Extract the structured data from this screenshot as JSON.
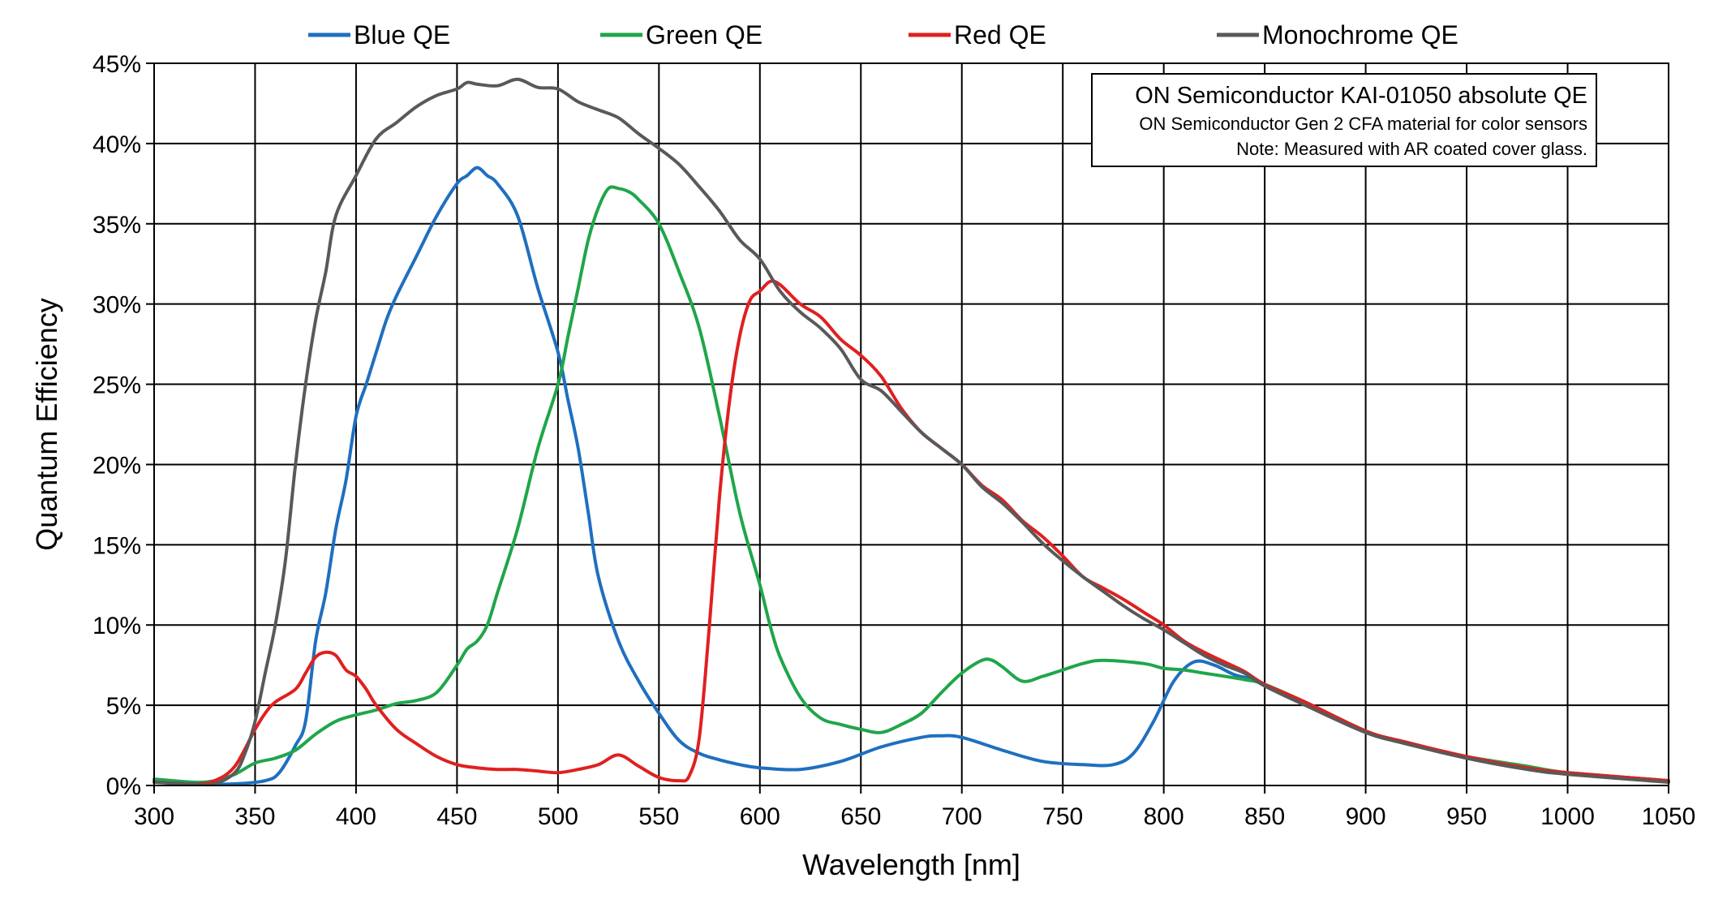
{
  "chart_data": {
    "type": "line",
    "title": "",
    "xlabel": "Wavelength [nm]",
    "ylabel": "Quantum Efficiency",
    "xlim": [
      300,
      1050
    ],
    "ylim": [
      0,
      45
    ],
    "x_ticks": [
      300,
      350,
      400,
      450,
      500,
      550,
      600,
      650,
      700,
      750,
      800,
      850,
      900,
      950,
      1000,
      1050
    ],
    "x_tick_labels": [
      "300",
      "350",
      "400",
      "450",
      "500",
      "550",
      "600",
      "650",
      "700",
      "750",
      "800",
      "850",
      "900",
      "950",
      "1000",
      "1050"
    ],
    "y_ticks": [
      0,
      5,
      10,
      15,
      20,
      25,
      30,
      35,
      40,
      45
    ],
    "y_tick_labels": [
      "0%",
      "5%",
      "10%",
      "15%",
      "20%",
      "25%",
      "30%",
      "35%",
      "40%",
      "45%"
    ],
    "grid": true,
    "legend_position": "top",
    "annotation": {
      "title": "ON Semiconductor KAI-01050 absolute QE",
      "line1": "ON Semiconductor Gen 2 CFA material for color sensors",
      "line2": "Note: Measured with AR coated cover glass."
    },
    "series": [
      {
        "name": "Blue QE",
        "color": "#1f6fbf",
        "points": [
          [
            300,
            0.3
          ],
          [
            320,
            0.1
          ],
          [
            340,
            0.1
          ],
          [
            355,
            0.3
          ],
          [
            362,
            0.8
          ],
          [
            370,
            2.5
          ],
          [
            375,
            4
          ],
          [
            380,
            9
          ],
          [
            385,
            12
          ],
          [
            390,
            16
          ],
          [
            395,
            19
          ],
          [
            400,
            23
          ],
          [
            405,
            25
          ],
          [
            410,
            27
          ],
          [
            415,
            29
          ],
          [
            420,
            30.5
          ],
          [
            430,
            33
          ],
          [
            440,
            35.5
          ],
          [
            450,
            37.5
          ],
          [
            455,
            38
          ],
          [
            460,
            38.5
          ],
          [
            465,
            38
          ],
          [
            470,
            37.5
          ],
          [
            480,
            35.5
          ],
          [
            490,
            31
          ],
          [
            500,
            27
          ],
          [
            505,
            24
          ],
          [
            510,
            21
          ],
          [
            515,
            17
          ],
          [
            520,
            13
          ],
          [
            530,
            9
          ],
          [
            540,
            6.5
          ],
          [
            550,
            4.5
          ],
          [
            560,
            2.8
          ],
          [
            570,
            2
          ],
          [
            580,
            1.6
          ],
          [
            590,
            1.3
          ],
          [
            600,
            1.1
          ],
          [
            620,
            1.0
          ],
          [
            640,
            1.5
          ],
          [
            660,
            2.4
          ],
          [
            680,
            3.0
          ],
          [
            690,
            3.1
          ],
          [
            700,
            3.0
          ],
          [
            720,
            2.2
          ],
          [
            740,
            1.5
          ],
          [
            760,
            1.3
          ],
          [
            775,
            1.3
          ],
          [
            785,
            2.0
          ],
          [
            795,
            4
          ],
          [
            805,
            6.5
          ],
          [
            815,
            7.7
          ],
          [
            825,
            7.5
          ],
          [
            835,
            6.9
          ],
          [
            845,
            6.6
          ],
          [
            850,
            6.3
          ],
          [
            870,
            5.2
          ],
          [
            900,
            3.4
          ],
          [
            920,
            2.6
          ],
          [
            950,
            1.8
          ],
          [
            980,
            1.1
          ],
          [
            1000,
            0.8
          ],
          [
            1050,
            0.3
          ]
        ]
      },
      {
        "name": "Green QE",
        "color": "#1fa64a",
        "points": [
          [
            300,
            0.4
          ],
          [
            320,
            0.2
          ],
          [
            330,
            0.3
          ],
          [
            340,
            0.7
          ],
          [
            350,
            1.4
          ],
          [
            360,
            1.7
          ],
          [
            370,
            2.2
          ],
          [
            380,
            3.2
          ],
          [
            390,
            4.0
          ],
          [
            400,
            4.4
          ],
          [
            410,
            4.7
          ],
          [
            420,
            5.1
          ],
          [
            430,
            5.3
          ],
          [
            440,
            5.8
          ],
          [
            450,
            7.5
          ],
          [
            455,
            8.5
          ],
          [
            460,
            9.0
          ],
          [
            465,
            10
          ],
          [
            470,
            12
          ],
          [
            480,
            16
          ],
          [
            490,
            21
          ],
          [
            500,
            25
          ],
          [
            505,
            28
          ],
          [
            510,
            31
          ],
          [
            515,
            34
          ],
          [
            520,
            36
          ],
          [
            525,
            37.2
          ],
          [
            530,
            37.2
          ],
          [
            535,
            37
          ],
          [
            540,
            36.5
          ],
          [
            550,
            35
          ],
          [
            560,
            32
          ],
          [
            570,
            28.5
          ],
          [
            580,
            23
          ],
          [
            590,
            17
          ],
          [
            600,
            12.5
          ],
          [
            605,
            10
          ],
          [
            610,
            8
          ],
          [
            620,
            5.5
          ],
          [
            630,
            4.2
          ],
          [
            640,
            3.8
          ],
          [
            650,
            3.5
          ],
          [
            660,
            3.3
          ],
          [
            670,
            3.8
          ],
          [
            680,
            4.5
          ],
          [
            690,
            5.8
          ],
          [
            700,
            7
          ],
          [
            710,
            7.8
          ],
          [
            715,
            7.8
          ],
          [
            720,
            7.4
          ],
          [
            730,
            6.5
          ],
          [
            740,
            6.8
          ],
          [
            750,
            7.2
          ],
          [
            760,
            7.6
          ],
          [
            770,
            7.8
          ],
          [
            790,
            7.6
          ],
          [
            800,
            7.3
          ],
          [
            810,
            7.2
          ],
          [
            820,
            7.0
          ],
          [
            840,
            6.6
          ],
          [
            850,
            6.3
          ],
          [
            870,
            5.2
          ],
          [
            900,
            3.4
          ],
          [
            920,
            2.6
          ],
          [
            950,
            1.8
          ],
          [
            980,
            1.2
          ],
          [
            1000,
            0.8
          ],
          [
            1050,
            0.3
          ]
        ]
      },
      {
        "name": "Red QE",
        "color": "#e02020",
        "points": [
          [
            300,
            0.2
          ],
          [
            320,
            0.1
          ],
          [
            330,
            0.3
          ],
          [
            340,
            1.2
          ],
          [
            350,
            3.5
          ],
          [
            355,
            4.5
          ],
          [
            360,
            5.2
          ],
          [
            370,
            6.0
          ],
          [
            375,
            7.0
          ],
          [
            380,
            8.0
          ],
          [
            385,
            8.3
          ],
          [
            390,
            8.1
          ],
          [
            395,
            7.2
          ],
          [
            400,
            6.8
          ],
          [
            405,
            6.0
          ],
          [
            410,
            5.0
          ],
          [
            420,
            3.5
          ],
          [
            430,
            2.6
          ],
          [
            440,
            1.8
          ],
          [
            450,
            1.3
          ],
          [
            460,
            1.1
          ],
          [
            470,
            1.0
          ],
          [
            480,
            1.0
          ],
          [
            490,
            0.9
          ],
          [
            500,
            0.8
          ],
          [
            510,
            1.0
          ],
          [
            520,
            1.3
          ],
          [
            530,
            1.9
          ],
          [
            540,
            1.2
          ],
          [
            550,
            0.5
          ],
          [
            560,
            0.3
          ],
          [
            565,
            0.6
          ],
          [
            570,
            3
          ],
          [
            575,
            10
          ],
          [
            580,
            18
          ],
          [
            585,
            24
          ],
          [
            590,
            28
          ],
          [
            595,
            30.2
          ],
          [
            600,
            30.8
          ],
          [
            605,
            31.4
          ],
          [
            610,
            31.2
          ],
          [
            620,
            30
          ],
          [
            630,
            29.2
          ],
          [
            640,
            27.8
          ],
          [
            650,
            26.8
          ],
          [
            660,
            25.5
          ],
          [
            670,
            23.5
          ],
          [
            680,
            22
          ],
          [
            690,
            21
          ],
          [
            700,
            20
          ],
          [
            710,
            18.7
          ],
          [
            720,
            17.8
          ],
          [
            730,
            16.5
          ],
          [
            740,
            15.5
          ],
          [
            750,
            14.3
          ],
          [
            760,
            13
          ],
          [
            770,
            12.3
          ],
          [
            780,
            11.6
          ],
          [
            790,
            10.8
          ],
          [
            800,
            10
          ],
          [
            810,
            9
          ],
          [
            820,
            8.3
          ],
          [
            830,
            7.7
          ],
          [
            840,
            7.1
          ],
          [
            850,
            6.3
          ],
          [
            870,
            5.2
          ],
          [
            900,
            3.4
          ],
          [
            920,
            2.7
          ],
          [
            950,
            1.8
          ],
          [
            980,
            1.1
          ],
          [
            1000,
            0.8
          ],
          [
            1050,
            0.3
          ]
        ]
      },
      {
        "name": "Monochrome QE",
        "color": "#595959",
        "points": [
          [
            300,
            0.2
          ],
          [
            320,
            0.1
          ],
          [
            330,
            0.1
          ],
          [
            340,
            0.8
          ],
          [
            345,
            2
          ],
          [
            350,
            4
          ],
          [
            355,
            7
          ],
          [
            360,
            10
          ],
          [
            365,
            14
          ],
          [
            370,
            20
          ],
          [
            375,
            25
          ],
          [
            380,
            29
          ],
          [
            385,
            32
          ],
          [
            390,
            35.5
          ],
          [
            400,
            38
          ],
          [
            410,
            40.3
          ],
          [
            420,
            41.3
          ],
          [
            430,
            42.3
          ],
          [
            440,
            43.0
          ],
          [
            450,
            43.4
          ],
          [
            455,
            43.8
          ],
          [
            460,
            43.7
          ],
          [
            470,
            43.6
          ],
          [
            480,
            44.0
          ],
          [
            490,
            43.5
          ],
          [
            500,
            43.4
          ],
          [
            510,
            42.6
          ],
          [
            520,
            42.1
          ],
          [
            530,
            41.6
          ],
          [
            540,
            40.6
          ],
          [
            550,
            39.7
          ],
          [
            560,
            38.7
          ],
          [
            570,
            37.3
          ],
          [
            580,
            35.8
          ],
          [
            590,
            34
          ],
          [
            600,
            32.8
          ],
          [
            610,
            30.8
          ],
          [
            620,
            29.5
          ],
          [
            630,
            28.5
          ],
          [
            640,
            27.2
          ],
          [
            650,
            25.3
          ],
          [
            660,
            24.6
          ],
          [
            670,
            23.3
          ],
          [
            680,
            22
          ],
          [
            690,
            21
          ],
          [
            700,
            20
          ],
          [
            710,
            18.6
          ],
          [
            720,
            17.6
          ],
          [
            730,
            16.4
          ],
          [
            740,
            15.1
          ],
          [
            750,
            14
          ],
          [
            760,
            13
          ],
          [
            770,
            12.1
          ],
          [
            780,
            11.2
          ],
          [
            790,
            10.4
          ],
          [
            800,
            9.7
          ],
          [
            810,
            8.9
          ],
          [
            820,
            8.1
          ],
          [
            830,
            7.5
          ],
          [
            840,
            7.0
          ],
          [
            850,
            6.2
          ],
          [
            870,
            5.0
          ],
          [
            900,
            3.3
          ],
          [
            920,
            2.6
          ],
          [
            950,
            1.7
          ],
          [
            980,
            1.0
          ],
          [
            1000,
            0.7
          ],
          [
            1050,
            0.2
          ]
        ]
      }
    ]
  }
}
